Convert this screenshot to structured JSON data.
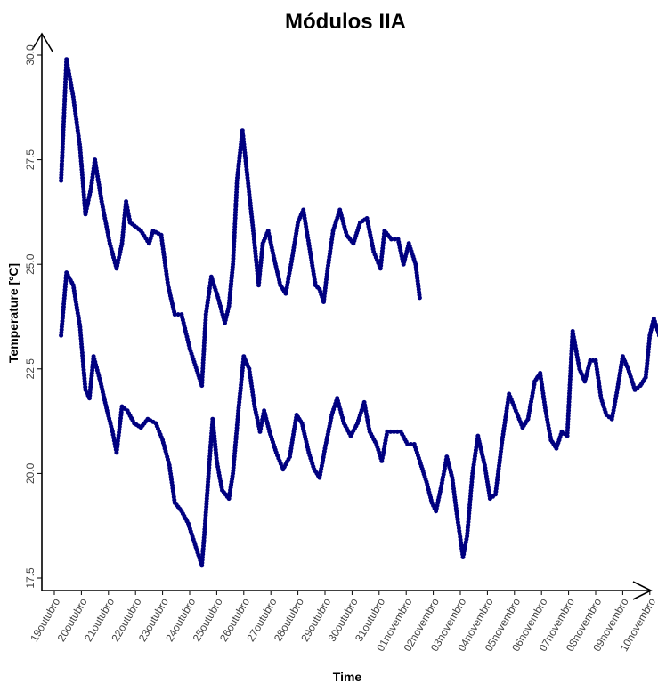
{
  "chart_data": {
    "type": "scatter",
    "title": "Módulos IIA",
    "xlabel": "Time",
    "ylabel": "Temperature [ºC]",
    "x_ticks": [
      "19outubro",
      "20outubro",
      "21outubro",
      "22outubro",
      "23outubro",
      "24outubro",
      "25outubro",
      "26outubro",
      "27outubro",
      "28outubro",
      "29outubro",
      "30outubro",
      "31outubro",
      "01novembro",
      "02novembro",
      "03novembro",
      "04novembro",
      "05novembro",
      "06novembro",
      "07novembro",
      "08novembro",
      "09novembro",
      "10novembro"
    ],
    "y_ticks": [
      "17.5",
      "20.0",
      "22.5",
      "25.0",
      "27.5",
      "30.0"
    ],
    "x_domain": [
      0,
      22.6
    ],
    "ylim": [
      17.5,
      30.0
    ],
    "grid": false,
    "color": "#000080",
    "series": [
      {
        "values": [
          [
            0.25,
            27.0
          ],
          [
            0.45,
            29.9
          ],
          [
            0.7,
            29.0
          ],
          [
            0.95,
            27.8
          ],
          [
            1.15,
            26.2
          ],
          [
            1.35,
            26.8
          ],
          [
            1.5,
            27.5
          ],
          [
            1.75,
            26.5
          ],
          [
            2.05,
            25.5
          ],
          [
            2.3,
            24.9
          ],
          [
            2.5,
            25.5
          ],
          [
            2.65,
            26.5
          ],
          [
            2.8,
            26.0
          ],
          [
            3.2,
            25.8
          ],
          [
            3.5,
            25.5
          ],
          [
            3.65,
            25.8
          ],
          [
            3.95,
            25.7
          ],
          [
            4.2,
            24.5
          ],
          [
            4.45,
            23.8
          ],
          [
            4.7,
            23.8
          ],
          [
            5.0,
            23.0
          ],
          [
            5.3,
            22.4
          ],
          [
            5.45,
            22.1
          ],
          [
            5.6,
            23.8
          ],
          [
            5.8,
            24.7
          ],
          [
            6.05,
            24.2
          ],
          [
            6.3,
            23.6
          ],
          [
            6.45,
            24.0
          ],
          [
            6.6,
            25.0
          ],
          [
            6.75,
            27.0
          ],
          [
            6.95,
            28.2
          ],
          [
            7.15,
            27.0
          ],
          [
            7.35,
            25.8
          ],
          [
            7.55,
            24.5
          ],
          [
            7.7,
            25.5
          ],
          [
            7.9,
            25.8
          ],
          [
            8.1,
            25.2
          ],
          [
            8.35,
            24.5
          ],
          [
            8.55,
            24.3
          ],
          [
            8.8,
            25.2
          ],
          [
            9.0,
            26.0
          ],
          [
            9.2,
            26.3
          ],
          [
            9.45,
            25.3
          ],
          [
            9.65,
            24.5
          ],
          [
            9.8,
            24.4
          ],
          [
            9.95,
            24.1
          ],
          [
            10.1,
            24.9
          ],
          [
            10.3,
            25.8
          ],
          [
            10.55,
            26.3
          ],
          [
            10.8,
            25.7
          ],
          [
            11.05,
            25.5
          ],
          [
            11.3,
            26.0
          ],
          [
            11.55,
            26.1
          ],
          [
            11.8,
            25.3
          ],
          [
            12.05,
            24.9
          ],
          [
            12.2,
            25.8
          ],
          [
            12.45,
            25.6
          ],
          [
            12.7,
            25.6
          ],
          [
            12.9,
            25.0
          ],
          [
            13.1,
            25.5
          ],
          [
            13.35,
            25.0
          ],
          [
            13.5,
            24.2
          ]
        ]
      },
      {
        "values": [
          [
            0.25,
            23.3
          ],
          [
            0.45,
            24.8
          ],
          [
            0.7,
            24.5
          ],
          [
            0.95,
            23.5
          ],
          [
            1.15,
            22.0
          ],
          [
            1.3,
            21.8
          ],
          [
            1.45,
            22.8
          ],
          [
            1.7,
            22.2
          ],
          [
            1.95,
            21.5
          ],
          [
            2.15,
            21.0
          ],
          [
            2.3,
            20.5
          ],
          [
            2.5,
            21.6
          ],
          [
            2.7,
            21.5
          ],
          [
            2.95,
            21.2
          ],
          [
            3.2,
            21.1
          ],
          [
            3.45,
            21.3
          ],
          [
            3.75,
            21.2
          ],
          [
            4.0,
            20.8
          ],
          [
            4.25,
            20.2
          ],
          [
            4.45,
            19.3
          ],
          [
            4.7,
            19.1
          ],
          [
            4.95,
            18.8
          ],
          [
            5.2,
            18.3
          ],
          [
            5.45,
            17.8
          ],
          [
            5.55,
            18.6
          ],
          [
            5.7,
            20.0
          ],
          [
            5.85,
            21.3
          ],
          [
            6.0,
            20.3
          ],
          [
            6.2,
            19.6
          ],
          [
            6.45,
            19.4
          ],
          [
            6.6,
            20.0
          ],
          [
            6.8,
            21.5
          ],
          [
            7.0,
            22.8
          ],
          [
            7.2,
            22.5
          ],
          [
            7.4,
            21.6
          ],
          [
            7.6,
            21.0
          ],
          [
            7.75,
            21.5
          ],
          [
            7.95,
            21.0
          ],
          [
            8.2,
            20.5
          ],
          [
            8.45,
            20.1
          ],
          [
            8.7,
            20.4
          ],
          [
            8.95,
            21.4
          ],
          [
            9.15,
            21.2
          ],
          [
            9.4,
            20.5
          ],
          [
            9.6,
            20.1
          ],
          [
            9.8,
            19.9
          ],
          [
            10.0,
            20.6
          ],
          [
            10.25,
            21.4
          ],
          [
            10.45,
            21.8
          ],
          [
            10.7,
            21.2
          ],
          [
            10.95,
            20.9
          ],
          [
            11.2,
            21.2
          ],
          [
            11.45,
            21.7
          ],
          [
            11.65,
            21.0
          ],
          [
            11.9,
            20.7
          ],
          [
            12.1,
            20.3
          ],
          [
            12.3,
            21.0
          ],
          [
            12.55,
            21.0
          ],
          [
            12.8,
            21.0
          ],
          [
            13.05,
            20.7
          ],
          [
            13.3,
            20.7
          ],
          [
            13.5,
            20.3
          ],
          [
            13.75,
            19.8
          ],
          [
            13.95,
            19.3
          ],
          [
            14.1,
            19.1
          ],
          [
            14.3,
            19.7
          ],
          [
            14.5,
            20.4
          ],
          [
            14.7,
            19.9
          ],
          [
            14.9,
            18.9
          ],
          [
            15.1,
            18.0
          ],
          [
            15.25,
            18.5
          ],
          [
            15.45,
            20.0
          ],
          [
            15.65,
            20.9
          ],
          [
            15.9,
            20.2
          ],
          [
            16.1,
            19.4
          ],
          [
            16.3,
            19.5
          ],
          [
            16.55,
            20.8
          ],
          [
            16.8,
            21.9
          ],
          [
            17.05,
            21.5
          ],
          [
            17.3,
            21.1
          ],
          [
            17.5,
            21.3
          ],
          [
            17.75,
            22.2
          ],
          [
            17.95,
            22.4
          ],
          [
            18.15,
            21.5
          ],
          [
            18.35,
            20.8
          ],
          [
            18.55,
            20.6
          ],
          [
            18.75,
            21.0
          ],
          [
            18.95,
            20.9
          ],
          [
            19.15,
            23.4
          ],
          [
            19.4,
            22.5
          ],
          [
            19.6,
            22.2
          ],
          [
            19.8,
            22.7
          ],
          [
            20.0,
            22.7
          ],
          [
            20.2,
            21.8
          ],
          [
            20.4,
            21.4
          ],
          [
            20.6,
            21.3
          ],
          [
            20.8,
            22.0
          ],
          [
            21.0,
            22.8
          ],
          [
            21.2,
            22.5
          ],
          [
            21.45,
            22.0
          ],
          [
            21.65,
            22.1
          ],
          [
            21.85,
            22.3
          ],
          [
            22.0,
            23.3
          ],
          [
            22.15,
            23.7
          ],
          [
            22.35,
            23.3
          ],
          [
            22.55,
            23.0
          ],
          [
            22.75,
            22.9
          ],
          [
            22.85,
            23.0
          ]
        ]
      }
    ]
  }
}
